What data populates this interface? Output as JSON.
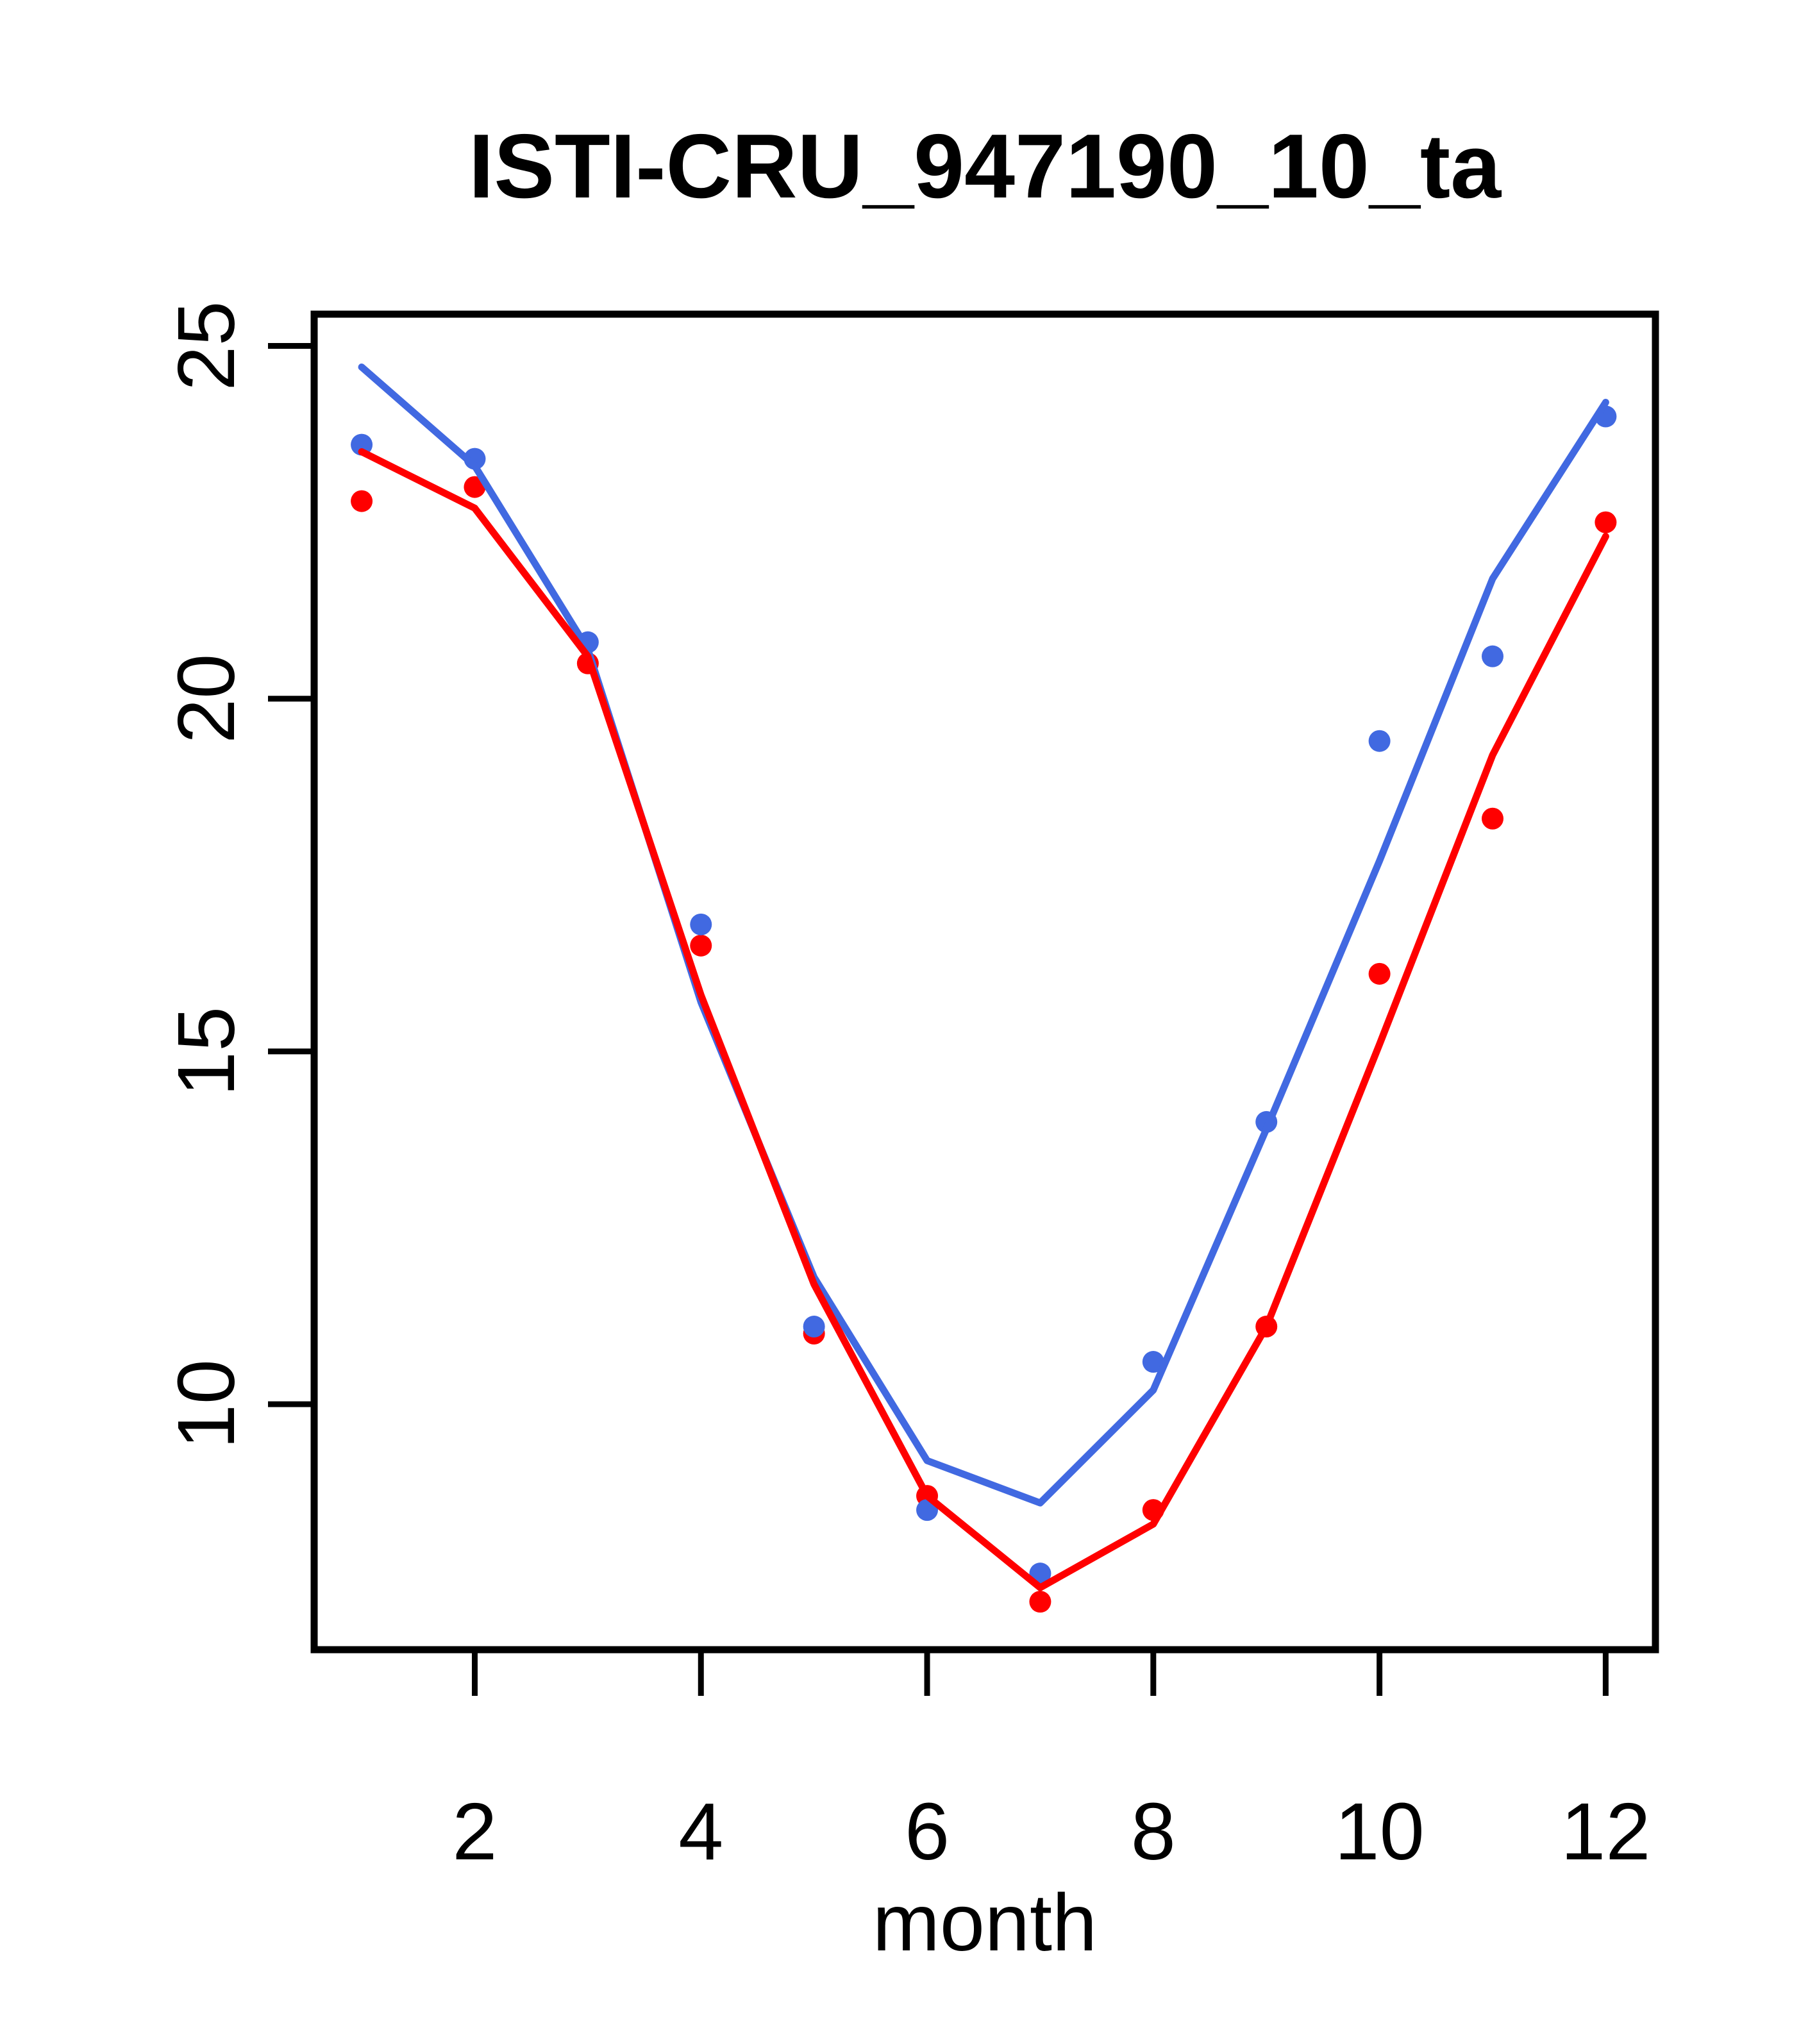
{
  "chart_data": {
    "type": "line+scatter",
    "title": "ISTI-CRU_947190_10_ta",
    "xlabel": "month",
    "ylabel": "",
    "x": [
      1,
      2,
      3,
      4,
      5,
      6,
      7,
      8,
      9,
      10,
      11,
      12
    ],
    "xticks": [
      2,
      4,
      6,
      8,
      10,
      12
    ],
    "yticks": [
      10,
      15,
      20,
      25
    ],
    "xlim": [
      0.58,
      12.44
    ],
    "ylim": [
      6.52,
      25.45
    ],
    "grid": false,
    "legend": "none",
    "background": "#ffffff",
    "axis_color": "#000000",
    "series": [
      {
        "name": "red-points",
        "type": "scatter",
        "color": "#FF0000",
        "values": [
          22.8,
          23.0,
          20.5,
          16.5,
          11.0,
          8.7,
          7.2,
          8.5,
          11.1,
          16.1,
          18.3,
          22.5
        ]
      },
      {
        "name": "blue-points",
        "type": "scatter",
        "color": "#4169E1",
        "values": [
          23.6,
          23.4,
          20.8,
          16.8,
          11.1,
          8.5,
          7.6,
          10.6,
          14.0,
          19.4,
          20.6,
          24.0
        ]
      },
      {
        "name": "blue-line",
        "type": "line",
        "color": "#4169E1",
        "values": [
          24.7,
          23.3,
          20.7,
          15.7,
          11.8,
          9.2,
          8.6,
          10.2,
          13.9,
          17.7,
          21.7,
          24.2
        ]
      },
      {
        "name": "red-line",
        "type": "line",
        "color": "#FF0000",
        "values": [
          23.5,
          22.7,
          20.6,
          15.8,
          11.7,
          8.7,
          7.4,
          8.3,
          11.1,
          15.1,
          19.2,
          22.3
        ]
      }
    ]
  }
}
